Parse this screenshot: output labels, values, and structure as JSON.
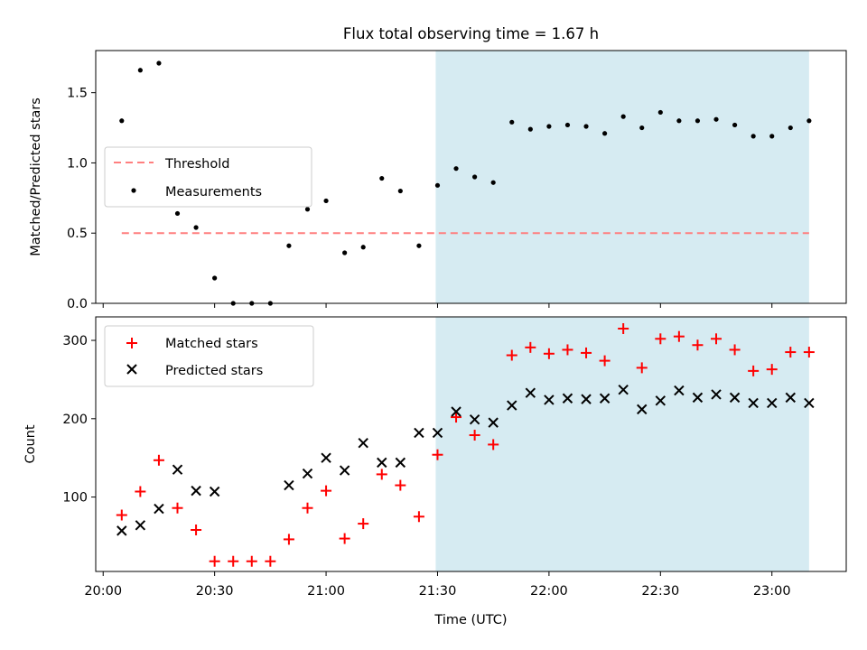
{
  "chart_data": [
    {
      "type": "scatter",
      "title": "Flux total observing time = 1.67 h",
      "xlabel": "",
      "ylabel": "Matched/Predicted stars",
      "xlim": [
        -2,
        200
      ],
      "ylim": [
        0,
        1.8
      ],
      "yticks": [
        0.0,
        0.5,
        1.0,
        1.5
      ],
      "ytick_labels": [
        "0.0",
        "0.5",
        "1.0",
        "1.5"
      ],
      "xticks": [
        0,
        30,
        60,
        90,
        120,
        150,
        180
      ],
      "grid": false,
      "legend_position": "center-left",
      "shaded_region": {
        "x_start": 89.5,
        "x_end": 190,
        "color": "#add8e6"
      },
      "threshold": {
        "name": "Threshold",
        "value": 0.5,
        "x_start": 5,
        "x_end": 190,
        "color": "#ff7f7f"
      },
      "series": [
        {
          "name": "Measurements",
          "color": "#000000",
          "x": [
            5,
            10,
            15,
            20,
            25,
            30,
            35,
            40,
            45,
            50,
            55,
            60,
            65,
            70,
            75,
            80,
            85,
            90,
            95,
            100,
            105,
            110,
            115,
            120,
            125,
            130,
            135,
            140,
            145,
            150,
            155,
            160,
            165,
            170,
            175,
            180,
            185,
            190
          ],
          "y": [
            1.3,
            1.66,
            1.71,
            0.64,
            0.54,
            0.18,
            0.0,
            0.0,
            0.0,
            0.41,
            0.67,
            0.73,
            0.36,
            0.4,
            0.89,
            0.8,
            0.41,
            0.84,
            0.96,
            0.9,
            0.86,
            1.29,
            1.24,
            1.26,
            1.27,
            1.26,
            1.21,
            1.33,
            1.25,
            1.36,
            1.3,
            1.3,
            1.31,
            1.27,
            1.19,
            1.19,
            1.25,
            1.3
          ]
        }
      ]
    },
    {
      "type": "scatter",
      "title": "",
      "xlabel": "Time (UTC)",
      "ylabel": "Count",
      "xlim": [
        -2,
        200
      ],
      "ylim": [
        5,
        330
      ],
      "yticks": [
        100,
        200,
        300
      ],
      "ytick_labels": [
        "100",
        "200",
        "300"
      ],
      "xticks": [
        0,
        30,
        60,
        90,
        120,
        150,
        180
      ],
      "xtick_labels": [
        "20:00",
        "20:30",
        "21:00",
        "21:30",
        "22:00",
        "22:30",
        "23:00"
      ],
      "grid": false,
      "legend_position": "top-left",
      "shaded_region": {
        "x_start": 89.5,
        "x_end": 190,
        "color": "#add8e6"
      },
      "series": [
        {
          "name": "Matched stars",
          "marker": "plus",
          "color": "#ff0000",
          "x": [
            5,
            10,
            15,
            20,
            25,
            30,
            35,
            40,
            45,
            50,
            55,
            60,
            65,
            70,
            75,
            80,
            85,
            90,
            95,
            100,
            105,
            110,
            115,
            120,
            125,
            130,
            135,
            140,
            145,
            150,
            155,
            160,
            165,
            170,
            175,
            180,
            185,
            190
          ],
          "y": [
            77,
            107,
            147,
            86,
            58,
            18,
            18,
            18,
            18,
            46,
            86,
            108,
            47,
            66,
            129,
            115,
            75,
            154,
            202,
            179,
            167,
            281,
            291,
            283,
            288,
            284,
            274,
            315,
            265,
            302,
            305,
            294,
            302,
            288,
            261,
            263,
            285,
            285
          ]
        },
        {
          "name": "Predicted stars",
          "marker": "x",
          "color": "#000000",
          "x": [
            5,
            10,
            15,
            20,
            25,
            30,
            50,
            55,
            60,
            65,
            70,
            75,
            80,
            85,
            90,
            95,
            100,
            105,
            110,
            115,
            120,
            125,
            130,
            135,
            140,
            145,
            150,
            155,
            160,
            165,
            170,
            175,
            180,
            185,
            190
          ],
          "y": [
            57,
            64,
            85,
            135,
            108,
            107,
            115,
            130,
            150,
            134,
            169,
            144,
            144,
            182,
            182,
            209,
            199,
            195,
            217,
            233,
            224,
            226,
            225,
            226,
            237,
            212,
            223,
            236,
            227,
            231,
            227,
            220,
            220,
            227,
            220
          ]
        }
      ]
    }
  ]
}
